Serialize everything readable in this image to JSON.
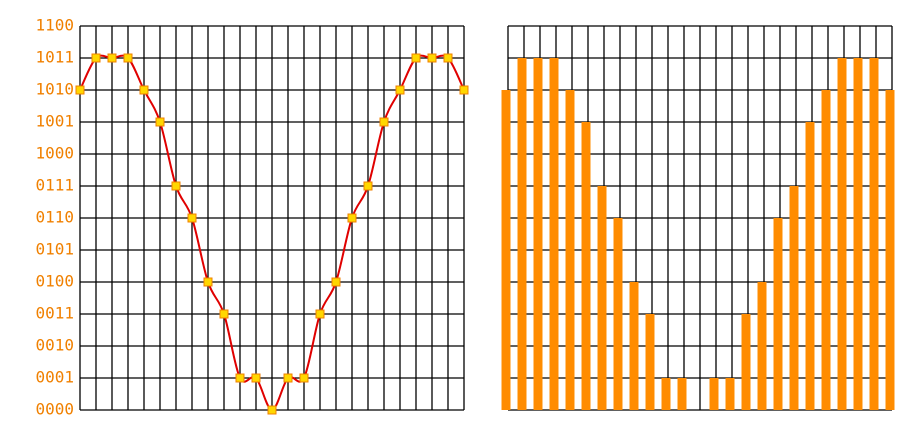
{
  "chart_data": [
    {
      "type": "line",
      "color": "#e00000",
      "marker_color": "#ffd700",
      "marker_edge": "#f08000",
      "label_color": "#f08000",
      "values": [
        10,
        11,
        11,
        11,
        10,
        9,
        7,
        6,
        4,
        3,
        1,
        1,
        0,
        1,
        1,
        3,
        4,
        6,
        7,
        9,
        10,
        11,
        11,
        11,
        10
      ],
      "ylim": [
        0,
        12
      ],
      "yticks": [
        {
          "value": 0,
          "label": "0000"
        },
        {
          "value": 1,
          "label": "0001"
        },
        {
          "value": 2,
          "label": "0010"
        },
        {
          "value": 3,
          "label": "0011"
        },
        {
          "value": 4,
          "label": "0100"
        },
        {
          "value": 5,
          "label": "0101"
        },
        {
          "value": 6,
          "label": "0110"
        },
        {
          "value": 7,
          "label": "0111"
        },
        {
          "value": 8,
          "label": "1000"
        },
        {
          "value": 9,
          "label": "1001"
        },
        {
          "value": 10,
          "label": "1010"
        },
        {
          "value": 11,
          "label": "1011"
        },
        {
          "value": 12,
          "label": "1100"
        }
      ],
      "grid": true
    },
    {
      "type": "bar",
      "color": "#ff8c00",
      "values": [
        10,
        11,
        11,
        11,
        10,
        9,
        7,
        6,
        4,
        3,
        1,
        1,
        0,
        1,
        1,
        3,
        4,
        6,
        7,
        9,
        10,
        11,
        11,
        11,
        10
      ],
      "ylim": [
        0,
        12
      ],
      "yticks": [
        0,
        1,
        2,
        3,
        4,
        5,
        6,
        7,
        8,
        9,
        10,
        11,
        12
      ],
      "tick_labels": false,
      "grid": true
    }
  ]
}
